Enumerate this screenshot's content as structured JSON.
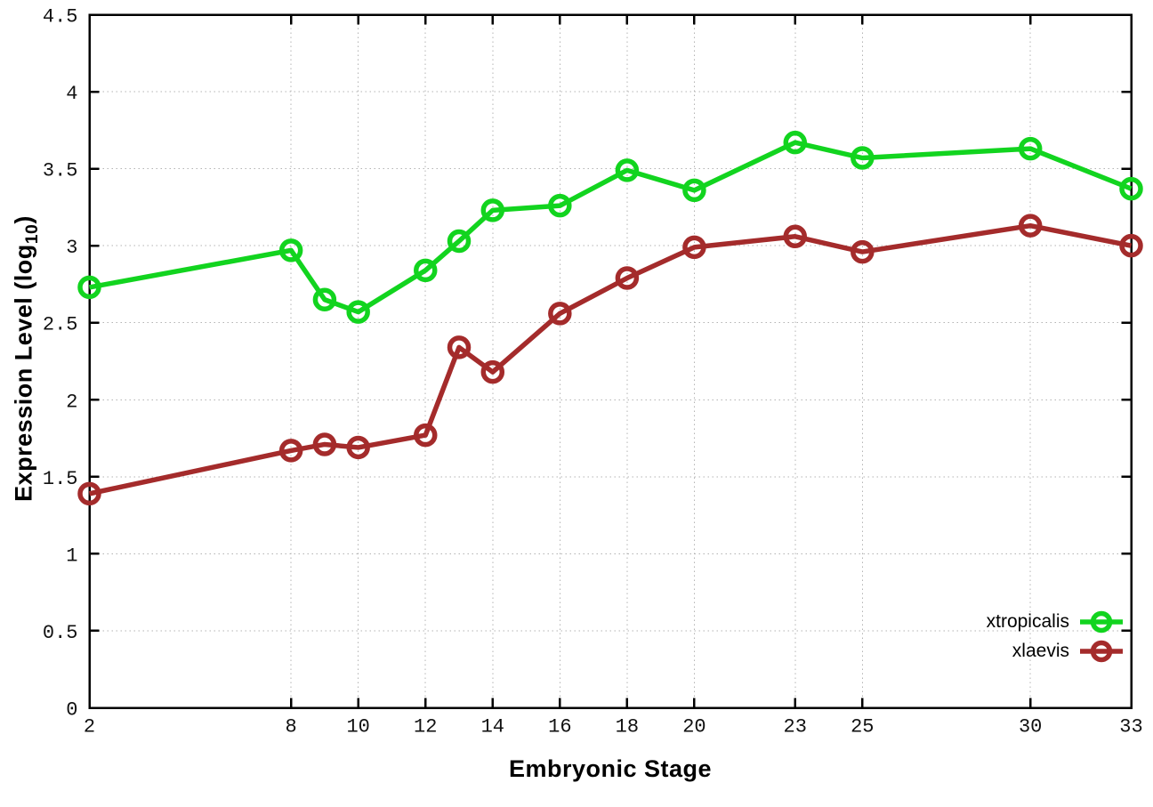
{
  "chart_data": {
    "type": "line",
    "title": "",
    "xlabel": "Embryonic Stage",
    "ylabel": {
      "pre": "Expression Level (log",
      "sub": "10",
      "post": ")"
    },
    "x": [
      2,
      8,
      9,
      10,
      12,
      13,
      14,
      16,
      18,
      20,
      23,
      25,
      30,
      33
    ],
    "series": [
      {
        "name": "xtropicalis",
        "color": "#12d41f",
        "values": [
          2.73,
          2.97,
          2.65,
          2.57,
          2.84,
          3.03,
          3.23,
          3.26,
          3.49,
          3.36,
          3.67,
          3.57,
          3.63,
          3.37
        ]
      },
      {
        "name": "xlaevis",
        "color": "#a42b2b",
        "values": [
          1.39,
          1.67,
          1.71,
          1.69,
          1.77,
          2.34,
          2.18,
          2.56,
          2.79,
          2.99,
          3.06,
          2.96,
          3.13,
          3.0
        ]
      }
    ],
    "xlim": [
      2,
      33
    ],
    "ylim": [
      0,
      4.5
    ],
    "xticks": [
      2,
      8,
      10,
      12,
      14,
      16,
      18,
      20,
      23,
      25,
      30,
      33
    ],
    "xtick_labels": [
      "2",
      "8",
      "10",
      "12",
      "14",
      "16",
      "18",
      "20",
      "23",
      "25",
      "30",
      "33"
    ],
    "yticks": [
      0,
      0.5,
      1,
      1.5,
      2,
      2.5,
      3,
      3.5,
      4,
      4.5
    ],
    "ytick_labels": [
      "0",
      "0.5",
      "1",
      "1.5",
      "2",
      "2.5",
      "3",
      "3.5",
      "4",
      "4.5"
    ],
    "grid": true,
    "grid_color": "#b3b3b3",
    "axis_color": "#000000",
    "legend_position": "inside-bottom-right",
    "marker": "open-circle"
  }
}
